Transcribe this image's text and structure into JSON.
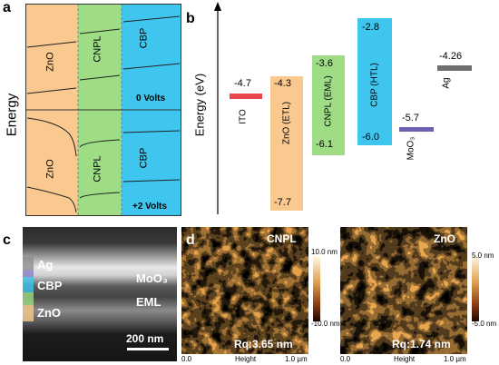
{
  "panel_a": {
    "letter": "a",
    "ylabel": "Energy",
    "layers": [
      "ZnO",
      "CNPL",
      "CBP"
    ],
    "top_condition": "0 Volts",
    "bottom_condition": "+2 Volts",
    "colors": {
      "zno": "#f9c98f",
      "cnpl": "#9edc85",
      "cbp": "#3ec6ef"
    }
  },
  "panel_b": {
    "letter": "b",
    "ylabel": "Energy (eV)",
    "bars": [
      {
        "name": "ITO",
        "top": "-4.7",
        "bottom": "",
        "color": "#e8474b"
      },
      {
        "name": "ZnO (ETL)",
        "top": "-4.3",
        "bottom": "-7.7",
        "color": "#f9c98f"
      },
      {
        "name": "CNPL (EML)",
        "top": "-3.6",
        "bottom": "-6.1",
        "color": "#9edc85"
      },
      {
        "name": "CBP (HTL)",
        "top": "-2.8",
        "bottom": "-6.0",
        "color": "#3ec6ef"
      },
      {
        "name": "MoO₃",
        "top": "-5.7",
        "bottom": "",
        "color": "#6a60b0"
      },
      {
        "name": "Ag",
        "top": "-4.26",
        "bottom": "",
        "color": "#6e6e6e"
      }
    ]
  },
  "panel_c": {
    "letter": "c",
    "labels": {
      "ag": "Ag",
      "cbp": "CBP",
      "zno": "ZnO",
      "moo3": "MoO₃",
      "eml": "EML"
    },
    "scale_bar": "200 nm"
  },
  "panel_d": {
    "letter": "d",
    "images": [
      {
        "name": "CNPL",
        "rq": "Rq:3.65 nm",
        "colorbar_max": "10.0 nm",
        "colorbar_min": "-10.0 nm",
        "x_start": "0.0",
        "x_label": "Height",
        "x_end": "1.0 µm"
      },
      {
        "name": "ZnO",
        "rq": "Rq:1.74 nm",
        "colorbar_max": "5.0 nm",
        "colorbar_min": "-5.0 nm",
        "x_start": "0.0",
        "x_label": "Height",
        "x_end": "1.0 µm"
      }
    ]
  }
}
